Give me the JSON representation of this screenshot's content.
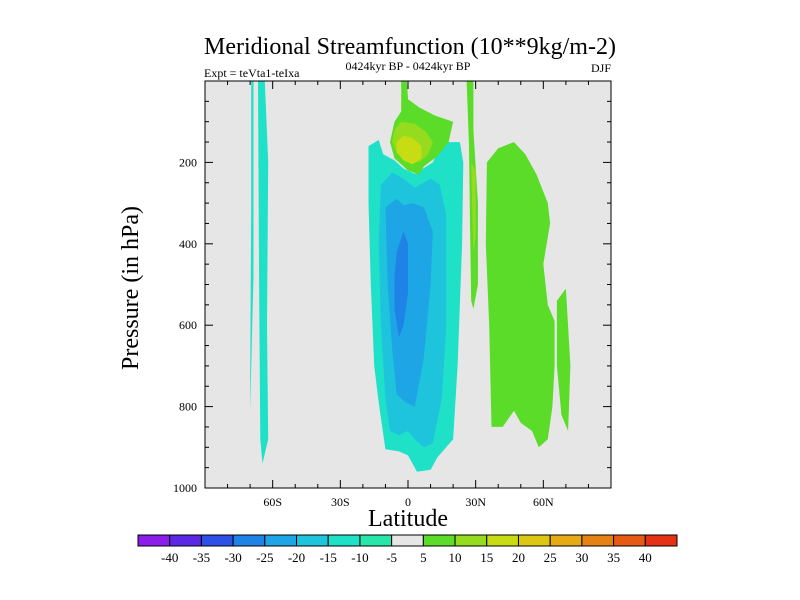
{
  "chart_data": {
    "type": "contour",
    "title": "Meridional Streamfunction (10**9kg/m-2)",
    "subtitle": "0424kyr BP - 0424kyr BP",
    "left_label": "Expt = teVta1-teIxa",
    "right_label": "DJF",
    "xlabel": "Latitude",
    "ylabel": "Pressure (in hPa)",
    "xlim": [
      -90,
      90
    ],
    "ylim": [
      1000,
      0
    ],
    "x_ticks": [
      {
        "value": -60,
        "label": "60S"
      },
      {
        "value": -30,
        "label": "30S"
      },
      {
        "value": 0,
        "label": "0"
      },
      {
        "value": 30,
        "label": "30N"
      },
      {
        "value": 60,
        "label": "60N"
      }
    ],
    "y_ticks": [
      {
        "value": 200,
        "label": "200"
      },
      {
        "value": 400,
        "label": "400"
      },
      {
        "value": 600,
        "label": "600"
      },
      {
        "value": 800,
        "label": "800"
      },
      {
        "value": 1000,
        "label": "1000"
      }
    ],
    "colorbar": {
      "levels": [
        -40,
        -35,
        -30,
        -25,
        -20,
        -15,
        -10,
        -5,
        5,
        10,
        15,
        20,
        25,
        30,
        35,
        40
      ],
      "colors": [
        "#8c1eeb",
        "#5a28e6",
        "#2d50e6",
        "#1e82e6",
        "#1ea5e6",
        "#1ec3dc",
        "#1ee1c8",
        "#28e6aa",
        "#e6e6e6",
        "#5adc28",
        "#96dc1e",
        "#c8dc14",
        "#dcc814",
        "#e6aa14",
        "#e68214",
        "#e65a14",
        "#e63214"
      ]
    },
    "regions": [
      {
        "name": "narrow-cell-60S-left",
        "level": "-10 to -5",
        "color": "#1ee1c8",
        "points": [
          [
            -69.5,
            0
          ],
          [
            -68.5,
            0
          ],
          [
            -68.5,
            480
          ],
          [
            -70,
            810
          ],
          [
            -70,
            770
          ],
          [
            -69.5,
            300
          ]
        ]
      },
      {
        "name": "narrow-cell-60S-right",
        "level": "-10 to -5",
        "color": "#1ee1c8",
        "points": [
          [
            -66.5,
            0
          ],
          [
            -63.5,
            0
          ],
          [
            -62,
            200
          ],
          [
            -62.5,
            600
          ],
          [
            -62,
            880
          ],
          [
            -64.5,
            940
          ],
          [
            -65.5,
            880
          ],
          [
            -66,
            500
          ]
        ]
      },
      {
        "name": "southern-cell-outer",
        "level": "-10 to -5",
        "color": "#1ee1c8",
        "points": [
          [
            -17.5,
            160
          ],
          [
            -13,
            145
          ],
          [
            -11,
            180
          ],
          [
            -6,
            195
          ],
          [
            -2,
            215
          ],
          [
            3,
            228
          ],
          [
            11,
            200
          ],
          [
            15,
            150
          ],
          [
            23,
            150
          ],
          [
            24.5,
            200
          ],
          [
            24,
            400
          ],
          [
            22,
            700
          ],
          [
            20,
            880
          ],
          [
            13,
            925
          ],
          [
            10,
            955
          ],
          [
            4,
            960
          ],
          [
            0,
            920
          ],
          [
            -4,
            910
          ],
          [
            -10,
            905
          ],
          [
            -13,
            790
          ],
          [
            -15,
            700
          ],
          [
            -16.5,
            500
          ],
          [
            -17.5,
            300
          ]
        ]
      },
      {
        "name": "southern-cell-minus-15",
        "level": "-15 to -10",
        "color": "#1ec3dc",
        "points": [
          [
            -12,
            255
          ],
          [
            -7,
            225
          ],
          [
            -2,
            240
          ],
          [
            3,
            262
          ],
          [
            10,
            240
          ],
          [
            14,
            255
          ],
          [
            17,
            330
          ],
          [
            17,
            600
          ],
          [
            15,
            780
          ],
          [
            11,
            890
          ],
          [
            7,
            900
          ],
          [
            3,
            880
          ],
          [
            0,
            860
          ],
          [
            -4,
            870
          ],
          [
            -8,
            860
          ],
          [
            -10,
            780
          ],
          [
            -12,
            600
          ],
          [
            -13,
            400
          ]
        ]
      },
      {
        "name": "southern-cell-minus-20",
        "level": "-20 to -15",
        "color": "#1ea5e6",
        "points": [
          [
            -10,
            310
          ],
          [
            -5,
            290
          ],
          [
            -2,
            305
          ],
          [
            2,
            300
          ],
          [
            7,
            310
          ],
          [
            11,
            370
          ],
          [
            10,
            500
          ],
          [
            7,
            680
          ],
          [
            3,
            800
          ],
          [
            -1,
            790
          ],
          [
            -5,
            770
          ],
          [
            -7,
            660
          ],
          [
            -9,
            500
          ]
        ]
      },
      {
        "name": "southern-cell-minus-25",
        "level": "-25 to -20",
        "color": "#1e82e6",
        "points": [
          [
            -5,
            420
          ],
          [
            -2,
            370
          ],
          [
            0,
            400
          ],
          [
            0,
            520
          ],
          [
            -2,
            600
          ],
          [
            -4,
            630
          ],
          [
            -6,
            560
          ],
          [
            -6,
            480
          ]
        ]
      },
      {
        "name": "equatorial-cell-outer",
        "level": "5 to 10",
        "color": "#5adc28",
        "points": [
          [
            -3,
            0
          ],
          [
            -0.5,
            0
          ],
          [
            0,
            45
          ],
          [
            5,
            65
          ],
          [
            12,
            85
          ],
          [
            20,
            100
          ],
          [
            18,
            150
          ],
          [
            13,
            185
          ],
          [
            7,
            210
          ],
          [
            5,
            230
          ],
          [
            0,
            220
          ],
          [
            -6,
            190
          ],
          [
            -8,
            150
          ],
          [
            -6,
            100
          ],
          [
            -3,
            75
          ]
        ]
      },
      {
        "name": "equatorial-cell-10",
        "level": "10 to 15",
        "color": "#96dc1e",
        "points": [
          [
            -6,
            120
          ],
          [
            -3,
            100
          ],
          [
            3,
            105
          ],
          [
            8,
            125
          ],
          [
            11,
            150
          ],
          [
            9,
            180
          ],
          [
            5,
            200
          ],
          [
            0,
            195
          ],
          [
            -5,
            175
          ],
          [
            -7,
            150
          ]
        ]
      },
      {
        "name": "equatorial-cell-15",
        "level": "15 to 20",
        "color": "#c8dc14",
        "points": [
          [
            -5,
            150
          ],
          [
            -2,
            135
          ],
          [
            2,
            140
          ],
          [
            6,
            160
          ],
          [
            6,
            190
          ],
          [
            2,
            205
          ],
          [
            -2,
            195
          ],
          [
            -5,
            175
          ]
        ]
      },
      {
        "name": "30N-cell-outer",
        "level": "5 to 10",
        "color": "#5adc28",
        "points": [
          [
            26,
            0
          ],
          [
            29,
            0
          ],
          [
            29,
            120
          ],
          [
            31,
            300
          ],
          [
            31,
            500
          ],
          [
            29,
            560
          ],
          [
            28,
            540
          ],
          [
            27.5,
            350
          ],
          [
            27,
            150
          ]
        ]
      },
      {
        "name": "30N-cell-inner",
        "level": "10 to 15",
        "color": "#96dc1e",
        "points": [
          [
            28,
            200
          ],
          [
            30,
            220
          ],
          [
            30,
            380
          ],
          [
            29,
            420
          ],
          [
            28.5,
            320
          ]
        ]
      },
      {
        "name": "mid-lat-cell",
        "level": "5 to 10",
        "color": "#5adc28",
        "points": [
          [
            35,
            200
          ],
          [
            40,
            165
          ],
          [
            47,
            150
          ],
          [
            52,
            180
          ],
          [
            57,
            230
          ],
          [
            62,
            300
          ],
          [
            63,
            350
          ],
          [
            60,
            450
          ],
          [
            62,
            550
          ],
          [
            65,
            590
          ],
          [
            65,
            700
          ],
          [
            64,
            800
          ],
          [
            62,
            880
          ],
          [
            58,
            900
          ],
          [
            55,
            860
          ],
          [
            50,
            840
          ],
          [
            47,
            810
          ],
          [
            42,
            850
          ],
          [
            37,
            850
          ],
          [
            36,
            600
          ],
          [
            34.5,
            400
          ]
        ]
      },
      {
        "name": "high-lat-cell",
        "level": "5 to 10",
        "color": "#5adc28",
        "points": [
          [
            66,
            540
          ],
          [
            70,
            510
          ],
          [
            72,
            700
          ],
          [
            71,
            860
          ],
          [
            68,
            820
          ],
          [
            66,
            700
          ]
        ]
      }
    ]
  }
}
